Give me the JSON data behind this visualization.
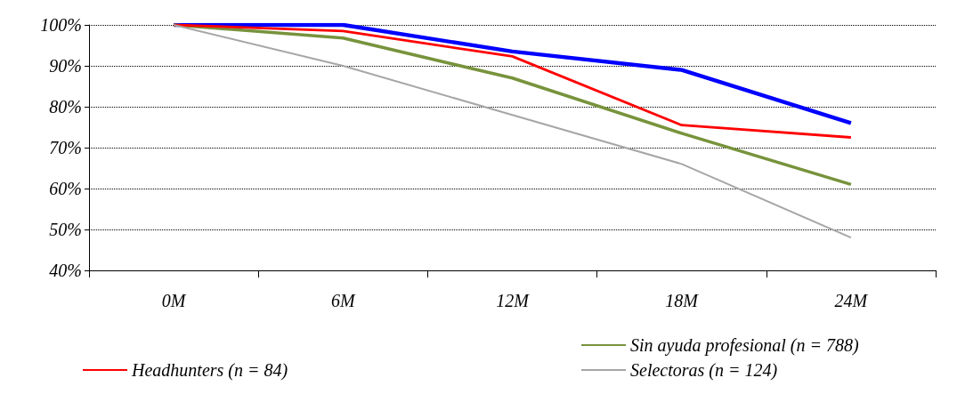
{
  "chart_data": {
    "type": "line",
    "categories": [
      "0M",
      "6M",
      "12M",
      "18M",
      "24M"
    ],
    "series": [
      {
        "color": "#0000ff",
        "values": [
          100,
          100,
          93.5,
          89,
          76
        ]
      },
      {
        "name": "Sin ayuda profesional (n = 788)",
        "color": "#77933c",
        "values": [
          100,
          96.8,
          87,
          73.5,
          61
        ]
      },
      {
        "name": "Headhunters (n = 84)",
        "color": "#ff0000",
        "values": [
          100,
          98.5,
          92.3,
          75.5,
          72.5
        ]
      },
      {
        "name": "Selectoras (n = 124)",
        "color": "#a6a6a6",
        "values": [
          100,
          90,
          78,
          66,
          48
        ]
      }
    ],
    "ylim": [
      40,
      100
    ],
    "yticks": [
      {
        "value": 40,
        "label": "40%"
      },
      {
        "value": 50,
        "label": "50%"
      },
      {
        "value": 60,
        "label": "60%"
      },
      {
        "value": 70,
        "label": "70%"
      },
      {
        "value": 80,
        "label": "80%"
      },
      {
        "value": 90,
        "label": "90%"
      },
      {
        "value": 100,
        "label": "100%"
      }
    ],
    "grid": "y",
    "legend": "bottom",
    "marker": "none",
    "line_style": "solid"
  }
}
